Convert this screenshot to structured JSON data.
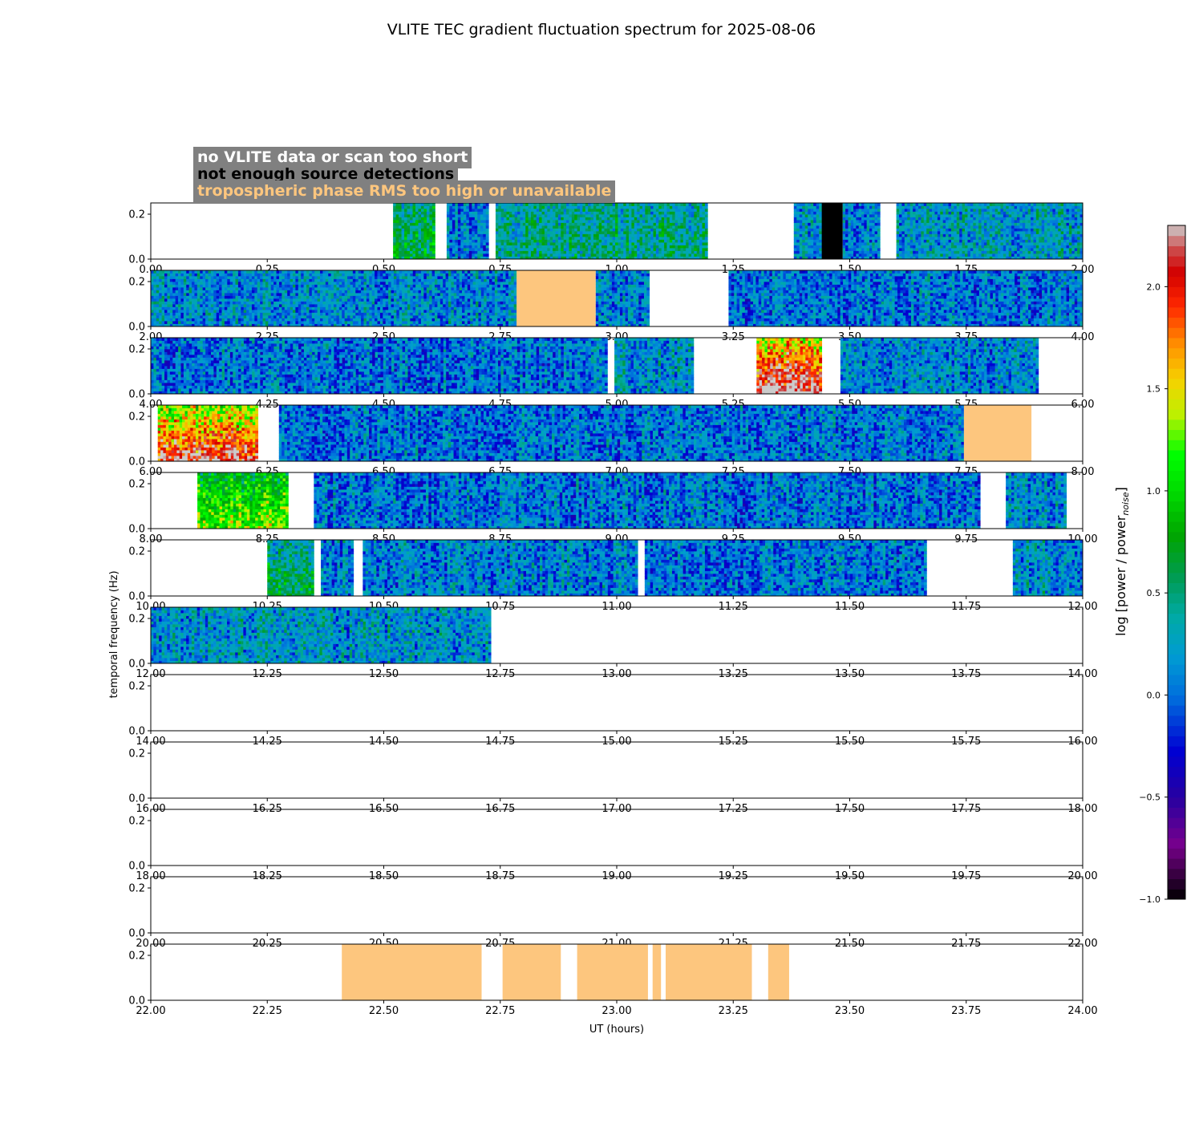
{
  "chart_data": {
    "type": "heatmap",
    "title": "VLITE TEC gradient fluctuation spectrum for 2025-08-06",
    "xlabel": "UT (hours)",
    "ylabel": "temporal frequency (Hz)",
    "colorbar_label": "log [power / power",
    "colorbar_label_sub": "noise",
    "colorbar_label_end": "]",
    "colorbar_range": [
      -1.0,
      2.3
    ],
    "colorbar_ticks": [
      "-1.0",
      "-0.5",
      "0.0",
      "0.5",
      "1.0",
      "1.5",
      "2.0"
    ],
    "colorbar_tick_values": [
      -1.0,
      -0.5,
      0.0,
      0.5,
      1.0,
      1.5,
      2.0
    ],
    "ylim": [
      0,
      0.25
    ],
    "yticks": [
      "0.0",
      "0.2"
    ],
    "ytick_values": [
      0.0,
      0.2
    ],
    "grid": false,
    "legend": {
      "no_data": "no VLITE data or scan too short",
      "few_sources": "not enough source detections",
      "tropo": "tropospheric phase RMS too high or unavailable"
    },
    "colors": {
      "no_data": "#ffffff",
      "few_sources": "#000000",
      "tropo": "#fdc67e",
      "legend_bg": "#808080"
    },
    "panels": [
      {
        "xlim": [
          0,
          2
        ],
        "xticks": [
          "0.00",
          "0.25",
          "0.50",
          "0.75",
          "1.00",
          "1.25",
          "1.50",
          "1.75",
          "2.00"
        ],
        "segments": [
          {
            "start": 0.52,
            "end": 0.61,
            "kind": "spectrum",
            "level": 0.45,
            "hot": 0.2
          },
          {
            "start": 0.635,
            "end": 0.725,
            "kind": "spectrum",
            "level": 0.1,
            "hot": 0
          },
          {
            "start": 0.74,
            "end": 1.195,
            "kind": "spectrum",
            "level": 0.35,
            "hot": 0.1
          },
          {
            "start": 1.38,
            "end": 1.44,
            "kind": "spectrum",
            "level": 0.2,
            "hot": 0
          },
          {
            "start": 1.44,
            "end": 1.485,
            "kind": "black"
          },
          {
            "start": 1.485,
            "end": 1.565,
            "kind": "spectrum",
            "level": 0.1,
            "hot": 0
          },
          {
            "start": 1.6,
            "end": 2.0,
            "kind": "spectrum",
            "level": 0.25,
            "hot": 0
          }
        ]
      },
      {
        "xlim": [
          2,
          4
        ],
        "xticks": [
          "2.00",
          "2.25",
          "2.50",
          "2.75",
          "3.00",
          "3.25",
          "3.50",
          "3.75",
          "4.00"
        ],
        "segments": [
          {
            "start": 2.0,
            "end": 2.785,
            "kind": "spectrum",
            "level": 0.15,
            "hot": 0
          },
          {
            "start": 2.785,
            "end": 2.955,
            "kind": "tropo"
          },
          {
            "start": 2.955,
            "end": 3.07,
            "kind": "spectrum",
            "level": 0.1,
            "hot": 0
          },
          {
            "start": 3.24,
            "end": 4.0,
            "kind": "spectrum",
            "level": 0.05,
            "hot": 0
          }
        ]
      },
      {
        "xlim": [
          4,
          6
        ],
        "xticks": [
          "4.00",
          "4.25",
          "4.50",
          "4.75",
          "5.00",
          "5.25",
          "5.50",
          "5.75",
          "6.00"
        ],
        "segments": [
          {
            "start": 4.0,
            "end": 4.98,
            "kind": "spectrum",
            "level": 0.05,
            "hot": 0
          },
          {
            "start": 4.995,
            "end": 5.165,
            "kind": "spectrum",
            "level": 0.2,
            "hot": 0
          },
          {
            "start": 5.3,
            "end": 5.44,
            "kind": "spectrum",
            "level": 1.3,
            "hot": 1
          },
          {
            "start": 5.48,
            "end": 5.905,
            "kind": "spectrum",
            "level": 0.1,
            "hot": 0
          }
        ]
      },
      {
        "xlim": [
          6,
          8
        ],
        "xticks": [
          "6.00",
          "6.25",
          "6.50",
          "6.75",
          "7.00",
          "7.25",
          "7.50",
          "7.75",
          "8.00"
        ],
        "segments": [
          {
            "start": 6.015,
            "end": 6.23,
            "kind": "spectrum",
            "level": 1.1,
            "hot": 1
          },
          {
            "start": 6.275,
            "end": 7.745,
            "kind": "spectrum",
            "level": 0.05,
            "hot": 0
          },
          {
            "start": 7.745,
            "end": 7.89,
            "kind": "tropo"
          }
        ]
      },
      {
        "xlim": [
          8,
          10
        ],
        "xticks": [
          "8.00",
          "8.25",
          "8.50",
          "8.75",
          "9.00",
          "9.25",
          "9.50",
          "9.75",
          "10.00"
        ],
        "segments": [
          {
            "start": 8.1,
            "end": 8.295,
            "kind": "spectrum",
            "level": 0.7,
            "hot": 0.5
          },
          {
            "start": 8.35,
            "end": 9.78,
            "kind": "spectrum",
            "level": 0.05,
            "hot": 0
          },
          {
            "start": 9.835,
            "end": 9.965,
            "kind": "spectrum",
            "level": 0.15,
            "hot": 0
          }
        ]
      },
      {
        "xlim": [
          10,
          12
        ],
        "xticks": [
          "10.00",
          "10.25",
          "10.50",
          "10.75",
          "11.00",
          "11.25",
          "11.50",
          "11.75",
          "12.00"
        ],
        "segments": [
          {
            "start": 10.25,
            "end": 10.35,
            "kind": "spectrum",
            "level": 0.3,
            "hot": 0.4
          },
          {
            "start": 10.365,
            "end": 10.435,
            "kind": "spectrum",
            "level": 0.1,
            "hot": 0
          },
          {
            "start": 10.455,
            "end": 11.045,
            "kind": "spectrum",
            "level": 0.1,
            "hot": 0
          },
          {
            "start": 11.06,
            "end": 11.665,
            "kind": "spectrum",
            "level": 0.05,
            "hot": 0
          },
          {
            "start": 11.85,
            "end": 12.0,
            "kind": "spectrum",
            "level": 0.2,
            "hot": 0
          }
        ]
      },
      {
        "xlim": [
          12,
          14
        ],
        "xticks": [
          "12.00",
          "12.25",
          "12.50",
          "12.75",
          "13.00",
          "13.25",
          "13.50",
          "13.75",
          "14.00"
        ],
        "segments": [
          {
            "start": 12.0,
            "end": 12.73,
            "kind": "spectrum",
            "level": 0.2,
            "hot": 0
          }
        ]
      },
      {
        "xlim": [
          14,
          16
        ],
        "xticks": [
          "14.00",
          "14.25",
          "14.50",
          "14.75",
          "15.00",
          "15.25",
          "15.50",
          "15.75",
          "16.00"
        ],
        "segments": []
      },
      {
        "xlim": [
          16,
          18
        ],
        "xticks": [
          "16.00",
          "16.25",
          "16.50",
          "16.75",
          "17.00",
          "17.25",
          "17.50",
          "17.75",
          "18.00"
        ],
        "segments": []
      },
      {
        "xlim": [
          18,
          20
        ],
        "xticks": [
          "18.00",
          "18.25",
          "18.50",
          "18.75",
          "19.00",
          "19.25",
          "19.50",
          "19.75",
          "20.00"
        ],
        "segments": []
      },
      {
        "xlim": [
          20,
          22
        ],
        "xticks": [
          "20.00",
          "20.25",
          "20.50",
          "20.75",
          "21.00",
          "21.25",
          "21.50",
          "21.75",
          "22.00"
        ],
        "segments": []
      },
      {
        "xlim": [
          22,
          24
        ],
        "xticks": [
          "22.00",
          "22.25",
          "22.50",
          "22.75",
          "23.00",
          "23.25",
          "23.50",
          "23.75",
          "24.00"
        ],
        "segments": [
          {
            "start": 22.41,
            "end": 22.71,
            "kind": "tropo"
          },
          {
            "start": 22.755,
            "end": 22.88,
            "kind": "tropo"
          },
          {
            "start": 22.915,
            "end": 23.067,
            "kind": "tropo"
          },
          {
            "start": 23.077,
            "end": 23.095,
            "kind": "tropo"
          },
          {
            "start": 23.105,
            "end": 23.29,
            "kind": "tropo"
          },
          {
            "start": 23.325,
            "end": 23.37,
            "kind": "tropo"
          }
        ]
      }
    ]
  }
}
